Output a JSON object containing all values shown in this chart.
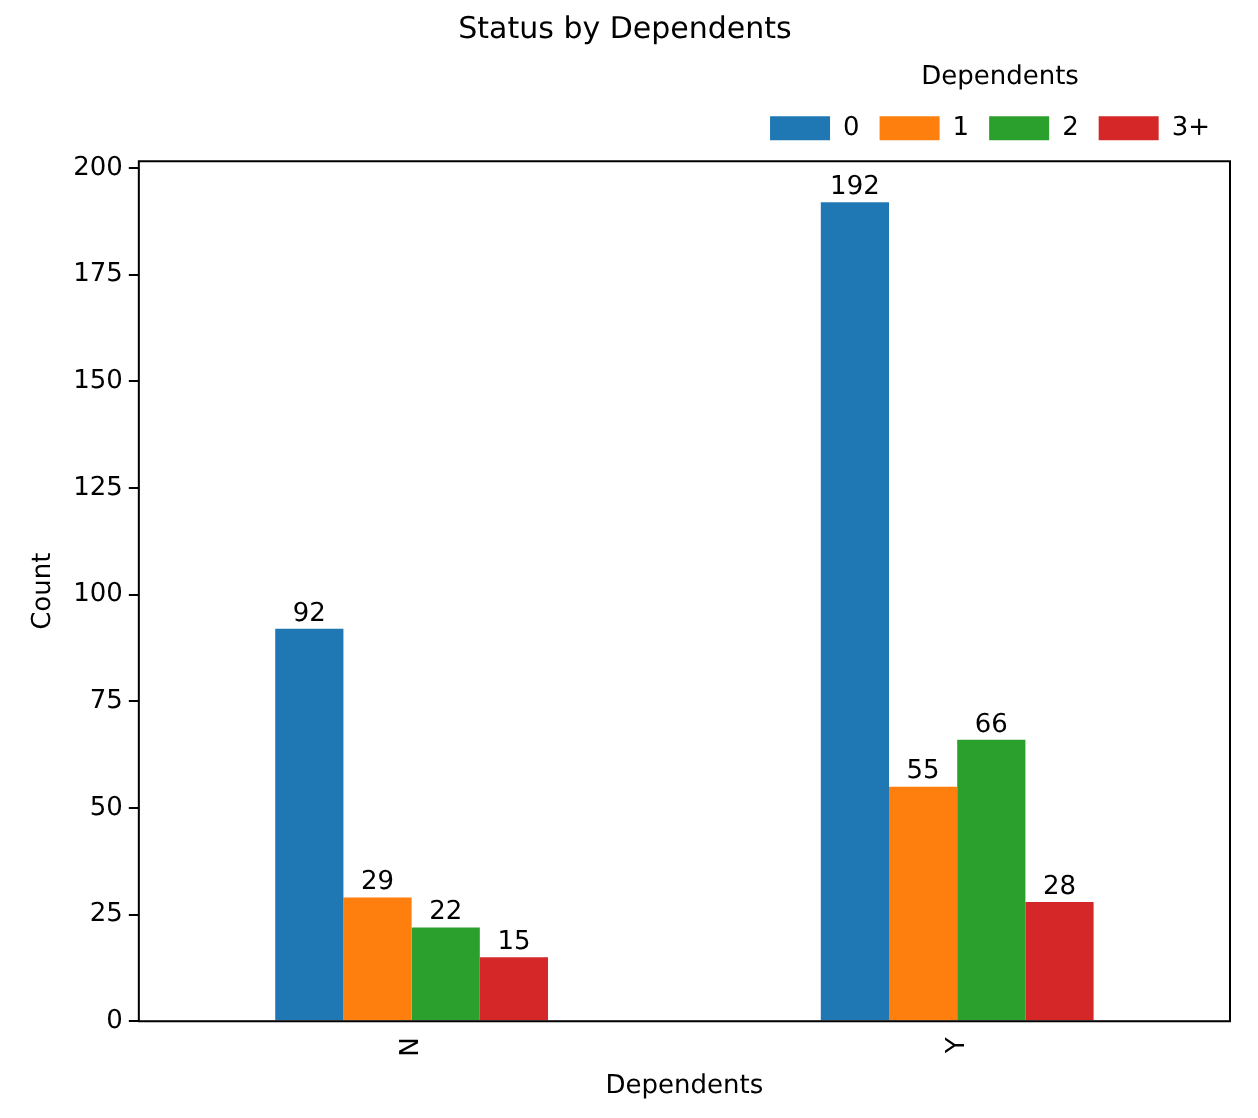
{
  "chart_data": {
    "type": "bar",
    "title": "Status by Dependents",
    "xlabel": "Dependents",
    "ylabel": "Count",
    "legend_title": "Dependents",
    "categories": [
      "N",
      "Y"
    ],
    "series": [
      {
        "name": "0",
        "color": "#1f77b4",
        "values": [
          92,
          192
        ]
      },
      {
        "name": "1",
        "color": "#ff7f0e",
        "values": [
          29,
          55
        ]
      },
      {
        "name": "2",
        "color": "#2ca02c",
        "values": [
          22,
          66
        ]
      },
      {
        "name": "3+",
        "color": "#d62728",
        "values": [
          15,
          28
        ]
      }
    ],
    "ylim": [
      0,
      201.6
    ],
    "yticks": [
      0,
      25,
      50,
      75,
      100,
      125,
      150,
      175,
      200
    ],
    "grid": false,
    "legend": "top right",
    "data_labels": true
  }
}
